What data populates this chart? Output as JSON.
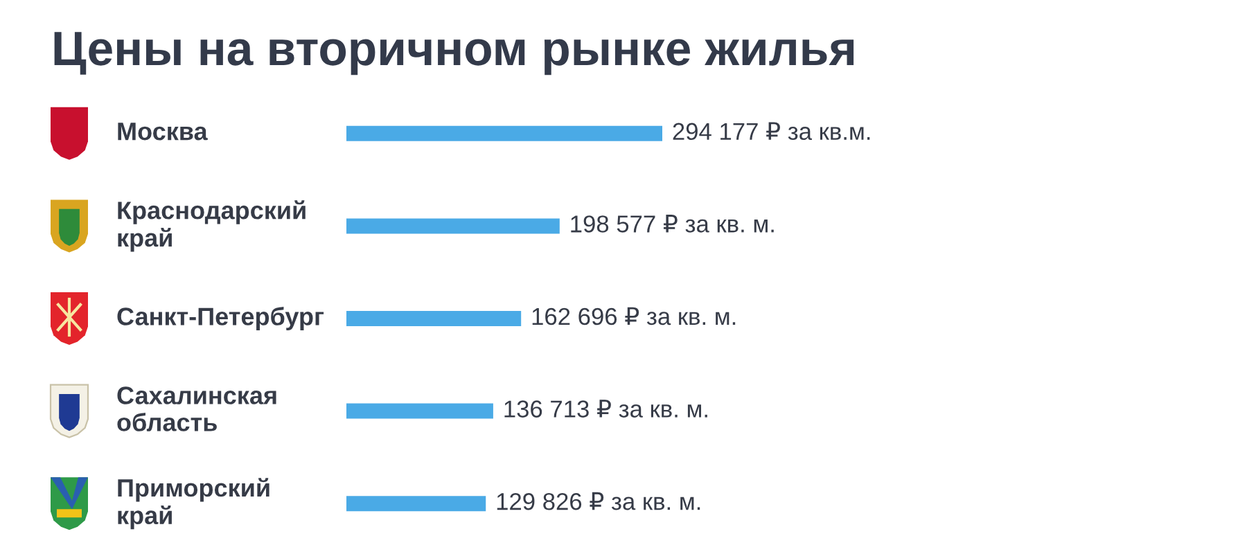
{
  "chart_data": {
    "type": "bar",
    "orientation": "horizontal",
    "title": "Цены на вторичном рынке жилья",
    "categories": [
      "Москва",
      "Краснодарский край",
      "Санкт-Петербург",
      "Сахалинская область",
      "Приморский край"
    ],
    "values": [
      294177,
      198577,
      162696,
      136713,
      129826
    ],
    "color": "#4aaae6",
    "value_labels": [
      "294 177 ₽ за кв.м.",
      "198 577 ₽ за кв. м.",
      "162 696 ₽ за кв. м.",
      "136 713 ₽ за кв. м.",
      "129 826 ₽ за кв. м."
    ],
    "tick_labels": "y"
  }
}
